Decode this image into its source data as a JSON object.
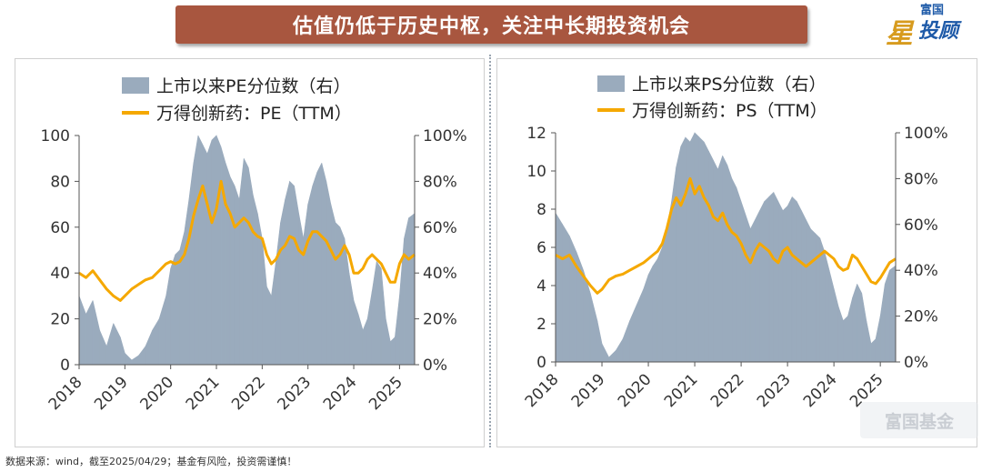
{
  "title": "估值仍低于历史中枢，关注中长期投资机会",
  "logo": {
    "small": "富国",
    "star": "星",
    "main": "投顾"
  },
  "watermark": "富国基金",
  "footer": "数据来源：wind，截至2025/04/29；基金有风险，投资需谨慎！",
  "colors": {
    "area": "#9aabbd",
    "line": "#f5a800",
    "banner": "#a8563f",
    "axis": "#555555"
  },
  "chart_data": [
    {
      "type": "area+line",
      "legend": [
        "上市以来PE分位数（右）",
        "万得创新药：PE（TTM）"
      ],
      "x_ticks": [
        "2018",
        "2019",
        "2020",
        "2021",
        "2022",
        "2023",
        "2024",
        "2025"
      ],
      "x_range": [
        2018.0,
        2025.33
      ],
      "y_left_ticks": [
        "0",
        "20",
        "40",
        "60",
        "80",
        "100"
      ],
      "y_left_range": [
        0,
        100
      ],
      "y_right_ticks": [
        "0%",
        "20%",
        "40%",
        "60%",
        "80%",
        "100%"
      ],
      "y_right_range": [
        0,
        100
      ],
      "area_series": {
        "name": "上市以来PE分位数（右）",
        "x": [
          2018.0,
          2018.15,
          2018.3,
          2018.45,
          2018.6,
          2018.75,
          2018.9,
          2019.0,
          2019.15,
          2019.3,
          2019.45,
          2019.6,
          2019.75,
          2019.9,
          2020.0,
          2020.1,
          2020.2,
          2020.3,
          2020.4,
          2020.5,
          2020.6,
          2020.7,
          2020.8,
          2020.9,
          2021.0,
          2021.1,
          2021.2,
          2021.3,
          2021.4,
          2021.5,
          2021.6,
          2021.7,
          2021.8,
          2021.9,
          2022.0,
          2022.1,
          2022.2,
          2022.3,
          2022.4,
          2022.5,
          2022.6,
          2022.7,
          2022.8,
          2022.9,
          2023.0,
          2023.1,
          2023.2,
          2023.3,
          2023.4,
          2023.5,
          2023.6,
          2023.7,
          2023.8,
          2023.9,
          2024.0,
          2024.1,
          2024.2,
          2024.3,
          2024.4,
          2024.5,
          2024.6,
          2024.7,
          2024.8,
          2024.9,
          2025.0,
          2025.1,
          2025.2,
          2025.33
        ],
        "values": [
          30,
          22,
          28,
          15,
          8,
          18,
          12,
          5,
          2,
          4,
          8,
          15,
          20,
          30,
          42,
          48,
          50,
          58,
          72,
          88,
          100,
          96,
          92,
          98,
          100,
          95,
          88,
          82,
          78,
          72,
          90,
          86,
          74,
          66,
          55,
          34,
          30,
          45,
          62,
          72,
          80,
          78,
          66,
          55,
          70,
          78,
          84,
          88,
          80,
          70,
          62,
          60,
          55,
          40,
          28,
          22,
          15,
          20,
          32,
          45,
          42,
          20,
          10,
          12,
          30,
          55,
          64,
          66
        ]
      },
      "line_series": {
        "name": "万得创新药：PE（TTM）",
        "x": [
          2018.0,
          2018.15,
          2018.3,
          2018.45,
          2018.6,
          2018.75,
          2018.9,
          2019.0,
          2019.15,
          2019.3,
          2019.45,
          2019.6,
          2019.75,
          2019.9,
          2020.0,
          2020.1,
          2020.2,
          2020.3,
          2020.4,
          2020.5,
          2020.6,
          2020.7,
          2020.8,
          2020.9,
          2021.0,
          2021.1,
          2021.2,
          2021.3,
          2021.4,
          2021.5,
          2021.6,
          2021.7,
          2021.8,
          2021.9,
          2022.0,
          2022.1,
          2022.2,
          2022.3,
          2022.4,
          2022.5,
          2022.6,
          2022.7,
          2022.8,
          2022.9,
          2023.0,
          2023.1,
          2023.2,
          2023.3,
          2023.4,
          2023.5,
          2023.6,
          2023.7,
          2023.8,
          2023.9,
          2024.0,
          2024.1,
          2024.2,
          2024.3,
          2024.4,
          2024.5,
          2024.6,
          2024.7,
          2024.8,
          2024.9,
          2025.0,
          2025.1,
          2025.2,
          2025.33
        ],
        "values": [
          40,
          38,
          41,
          37,
          33,
          30,
          28,
          30,
          33,
          35,
          37,
          38,
          41,
          44,
          45,
          44,
          45,
          48,
          55,
          65,
          72,
          78,
          70,
          62,
          68,
          80,
          70,
          66,
          60,
          62,
          64,
          62,
          58,
          56,
          55,
          48,
          44,
          46,
          50,
          52,
          56,
          55,
          50,
          48,
          54,
          58,
          58,
          56,
          54,
          50,
          46,
          48,
          52,
          48,
          40,
          40,
          42,
          46,
          48,
          46,
          44,
          40,
          36,
          36,
          44,
          48,
          46,
          48
        ]
      }
    },
    {
      "type": "area+line",
      "legend": [
        "上市以来PS分位数（右）",
        "万得创新药：PS（TTM）"
      ],
      "x_ticks": [
        "2018",
        "2019",
        "2020",
        "2021",
        "2022",
        "2023",
        "2024",
        "2025"
      ],
      "x_range": [
        2018.0,
        2025.33
      ],
      "y_left_ticks": [
        "0",
        "2",
        "4",
        "6",
        "8",
        "10",
        "12"
      ],
      "y_left_range": [
        0,
        12
      ],
      "y_right_ticks": [
        "0%",
        "20%",
        "40%",
        "60%",
        "80%",
        "100%"
      ],
      "y_right_range": [
        0,
        100
      ],
      "area_series": {
        "name": "上市以来PS分位数（右）",
        "x": [
          2018.0,
          2018.15,
          2018.3,
          2018.45,
          2018.6,
          2018.75,
          2018.9,
          2019.0,
          2019.15,
          2019.3,
          2019.45,
          2019.6,
          2019.75,
          2019.9,
          2020.0,
          2020.1,
          2020.2,
          2020.3,
          2020.4,
          2020.5,
          2020.6,
          2020.7,
          2020.8,
          2020.9,
          2021.0,
          2021.1,
          2021.2,
          2021.3,
          2021.4,
          2021.5,
          2021.6,
          2021.7,
          2021.8,
          2021.9,
          2022.0,
          2022.1,
          2022.2,
          2022.3,
          2022.4,
          2022.5,
          2022.6,
          2022.7,
          2022.8,
          2022.9,
          2023.0,
          2023.1,
          2023.2,
          2023.3,
          2023.4,
          2023.5,
          2023.6,
          2023.7,
          2023.8,
          2023.9,
          2024.0,
          2024.1,
          2024.2,
          2024.3,
          2024.4,
          2024.5,
          2024.6,
          2024.7,
          2024.8,
          2024.9,
          2025.0,
          2025.1,
          2025.2,
          2025.33
        ],
        "values": [
          65,
          60,
          55,
          48,
          40,
          30,
          18,
          8,
          2,
          5,
          10,
          18,
          25,
          32,
          38,
          42,
          45,
          50,
          58,
          70,
          85,
          94,
          98,
          96,
          100,
          98,
          96,
          92,
          88,
          84,
          90,
          86,
          80,
          76,
          70,
          64,
          58,
          62,
          66,
          70,
          72,
          74,
          70,
          66,
          68,
          72,
          70,
          66,
          62,
          58,
          56,
          54,
          48,
          40,
          32,
          24,
          18,
          20,
          28,
          34,
          30,
          18,
          8,
          10,
          20,
          34,
          40,
          42
        ]
      },
      "line_series": {
        "name": "万得创新药：PS（TTM）",
        "x": [
          2018.0,
          2018.15,
          2018.3,
          2018.45,
          2018.6,
          2018.75,
          2018.9,
          2019.0,
          2019.15,
          2019.3,
          2019.45,
          2019.6,
          2019.75,
          2019.9,
          2020.0,
          2020.1,
          2020.2,
          2020.3,
          2020.4,
          2020.5,
          2020.6,
          2020.7,
          2020.8,
          2020.9,
          2021.0,
          2021.1,
          2021.2,
          2021.3,
          2021.4,
          2021.5,
          2021.6,
          2021.7,
          2021.8,
          2021.9,
          2022.0,
          2022.1,
          2022.2,
          2022.3,
          2022.4,
          2022.5,
          2022.6,
          2022.7,
          2022.8,
          2022.9,
          2023.0,
          2023.1,
          2023.2,
          2023.3,
          2023.4,
          2023.5,
          2023.6,
          2023.7,
          2023.8,
          2023.9,
          2024.0,
          2024.1,
          2024.2,
          2024.3,
          2024.4,
          2024.5,
          2024.6,
          2024.7,
          2024.8,
          2024.9,
          2025.0,
          2025.1,
          2025.2,
          2025.33
        ],
        "values": [
          5.6,
          5.4,
          5.6,
          5.0,
          4.5,
          4.0,
          3.6,
          3.8,
          4.3,
          4.5,
          4.6,
          4.8,
          5.0,
          5.2,
          5.4,
          5.6,
          5.8,
          6.2,
          7.0,
          8.0,
          8.6,
          8.2,
          8.8,
          9.6,
          8.8,
          9.2,
          8.6,
          8.2,
          7.6,
          7.4,
          7.8,
          7.2,
          6.8,
          6.6,
          6.2,
          5.6,
          5.2,
          5.8,
          6.2,
          6.0,
          5.8,
          5.4,
          5.2,
          5.8,
          6.0,
          5.6,
          5.4,
          5.2,
          5.0,
          5.2,
          5.4,
          5.6,
          5.8,
          5.6,
          5.4,
          5.0,
          4.8,
          4.9,
          5.6,
          5.4,
          5.0,
          4.6,
          4.2,
          4.1,
          4.4,
          4.8,
          5.2,
          5.4
        ]
      }
    }
  ]
}
